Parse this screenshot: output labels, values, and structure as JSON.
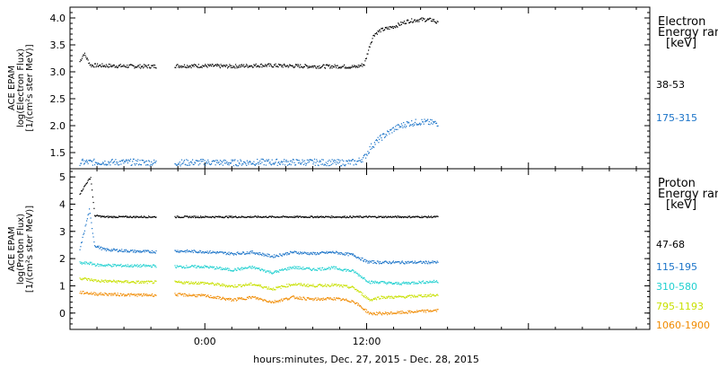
{
  "chart_data": [
    {
      "type": "scatter",
      "panel": "electron",
      "ylabel_lines": [
        "ACE EPAM",
        "log(Electron Flux)",
        "[1/(cm²s ster MeV)]"
      ],
      "legend_title_lines": [
        "Electron",
        "Energy ranges",
        "[keV]"
      ],
      "ylim": [
        1.2,
        4.2
      ],
      "yticks": [
        1.5,
        2.0,
        2.5,
        3.0,
        3.5,
        4.0
      ],
      "yticklabels": [
        "1.5",
        "2.0",
        "2.5",
        "3.0",
        "3.5",
        "4.0"
      ],
      "series": [
        {
          "name": "38-53",
          "color": "#000000",
          "x": [
            -9.3,
            -9,
            -8.5,
            -7,
            -5,
            -3.6,
            -2.3,
            0,
            2,
            4,
            6,
            8,
            10,
            11.2,
            11.8,
            12.2,
            12.5,
            13,
            14,
            15,
            16,
            16.9,
            17.3
          ],
          "y": [
            3.2,
            3.35,
            3.13,
            3.12,
            3.11,
            3.11,
            3.12,
            3.12,
            3.11,
            3.13,
            3.12,
            3.11,
            3.11,
            3.1,
            3.15,
            3.5,
            3.7,
            3.78,
            3.85,
            3.95,
            3.98,
            3.97,
            3.9
          ]
        },
        {
          "name": "175-315",
          "color": "#1a73c8",
          "x": [
            -9.3,
            -7,
            -5,
            -3.6,
            -2.3,
            0,
            2,
            4,
            6,
            8,
            10,
            11.2,
            11.8,
            12.3,
            13,
            14,
            15,
            16,
            17.3
          ],
          "y": [
            1.33,
            1.33,
            1.33,
            1.32,
            1.32,
            1.33,
            1.32,
            1.33,
            1.33,
            1.33,
            1.32,
            1.33,
            1.42,
            1.62,
            1.78,
            1.95,
            2.05,
            2.08,
            2.05
          ]
        }
      ]
    },
    {
      "type": "scatter",
      "panel": "proton",
      "ylabel_lines": [
        "ACE EPAM",
        "log(Proton Flux)",
        "[1/(cm²s ster MeV)]"
      ],
      "legend_title_lines": [
        "Proton",
        "Energy ranges",
        "[keV]"
      ],
      "ylim": [
        -0.6,
        5.3
      ],
      "yticks": [
        0,
        1,
        2,
        3,
        4,
        5
      ],
      "yticklabels": [
        "0",
        "1",
        "2",
        "3",
        "4",
        "5"
      ],
      "series": [
        {
          "name": "47-68",
          "color": "#000000",
          "x": [
            -9.3,
            -8.8,
            -8.5,
            -8.2,
            -7.5,
            -5,
            -3.6,
            -2.3,
            0,
            5,
            10,
            12,
            14,
            17.3
          ],
          "y": [
            4.4,
            4.8,
            5.0,
            3.6,
            3.55,
            3.55,
            3.55,
            3.55,
            3.55,
            3.55,
            3.55,
            3.55,
            3.55,
            3.55
          ]
        },
        {
          "name": "115-195",
          "color": "#1a73c8",
          "x": [
            -9.3,
            -8.6,
            -8.2,
            -7.5,
            -5,
            -3.6,
            -2.3,
            0,
            2,
            3.5,
            5,
            6.5,
            8,
            9.5,
            11,
            12,
            13,
            14,
            15,
            17.3
          ],
          "y": [
            2.35,
            3.8,
            2.5,
            2.35,
            2.28,
            2.27,
            2.3,
            2.27,
            2.2,
            2.25,
            2.1,
            2.25,
            2.2,
            2.25,
            2.15,
            1.9,
            1.88,
            1.88,
            1.88,
            1.88
          ]
        },
        {
          "name": "310-580",
          "color": "#20d0d0",
          "x": [
            -9.3,
            -8.6,
            -8,
            -5,
            -3.6,
            -2.3,
            0,
            2,
            3.5,
            5,
            6.5,
            8,
            9.5,
            11,
            12.2,
            13,
            14,
            15,
            16,
            17.3
          ],
          "y": [
            1.85,
            1.85,
            1.78,
            1.75,
            1.75,
            1.72,
            1.72,
            1.6,
            1.7,
            1.5,
            1.7,
            1.62,
            1.68,
            1.55,
            1.15,
            1.15,
            1.1,
            1.12,
            1.15,
            1.18
          ]
        },
        {
          "name": "795-1193",
          "color": "#c8e000",
          "x": [
            -9.3,
            -8,
            -5,
            -3.6,
            -2.3,
            0,
            2,
            3.5,
            5,
            6.5,
            8,
            9.5,
            11,
            12.2,
            13,
            14,
            15,
            16,
            17.3
          ],
          "y": [
            1.3,
            1.2,
            1.15,
            1.15,
            1.15,
            1.12,
            1.0,
            1.08,
            0.9,
            1.08,
            1.02,
            1.05,
            0.95,
            0.5,
            0.6,
            0.6,
            0.62,
            0.65,
            0.68
          ]
        },
        {
          "name": "1060-1900",
          "color": "#f08a00",
          "x": [
            -9.3,
            -8,
            -5,
            -3.6,
            -2.3,
            0,
            2,
            3.5,
            5,
            6.5,
            8,
            9.5,
            11,
            12.2,
            13,
            14,
            15,
            16,
            17.3
          ],
          "y": [
            0.78,
            0.72,
            0.68,
            0.68,
            0.7,
            0.65,
            0.5,
            0.6,
            0.42,
            0.6,
            0.52,
            0.55,
            0.45,
            0.0,
            0.0,
            0.02,
            0.05,
            0.08,
            0.12
          ]
        }
      ]
    }
  ],
  "xaxis": {
    "tick_labels": [
      {
        "x": 0,
        "label": "0:00"
      },
      {
        "x": 12,
        "label": "12:00"
      }
    ],
    "title": "hours:minutes, Dec. 27, 2015 - Dec. 28, 2015"
  },
  "data_gap": [
    -3.6,
    -2.3
  ]
}
